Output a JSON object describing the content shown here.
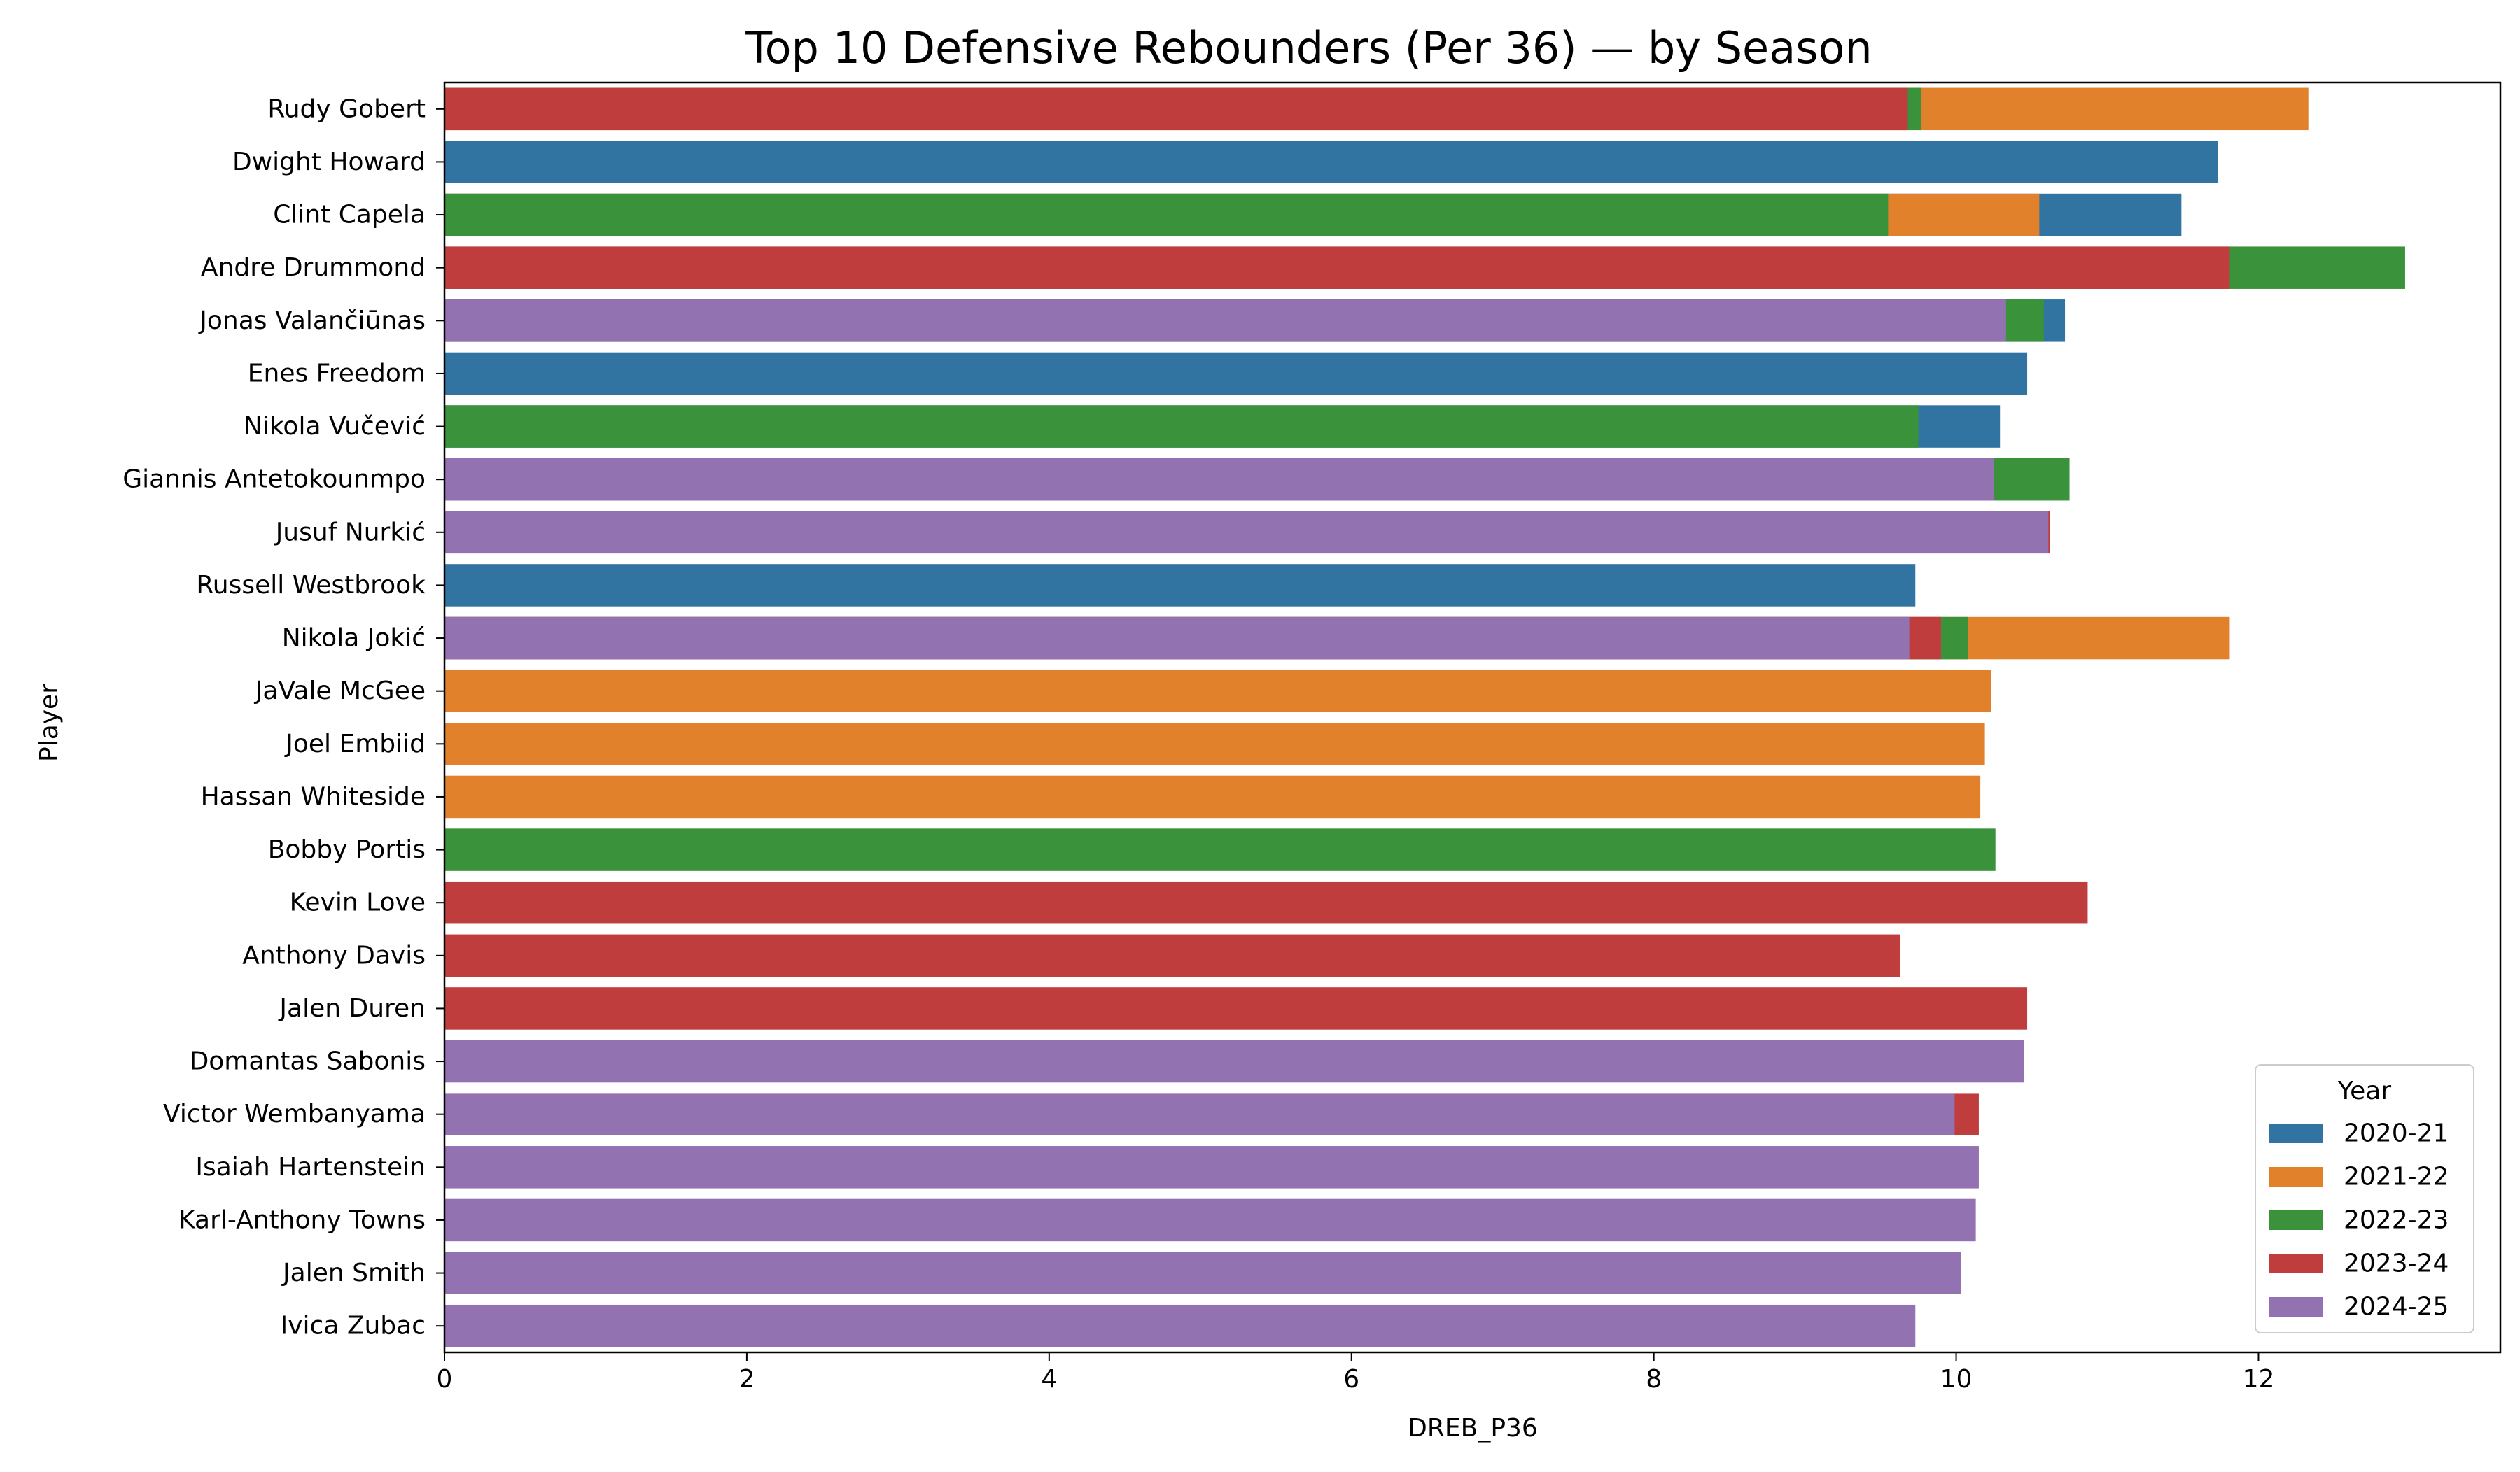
{
  "chart_data": {
    "type": "bar",
    "orientation": "horizontal",
    "title": "Top 10 Defensive Rebounders (Per 36) — by Season",
    "xlabel": "DREB_P36",
    "ylabel": "Player",
    "xlim": [
      0,
      13.6
    ],
    "xticks": [
      0,
      2,
      4,
      6,
      8,
      10,
      12
    ],
    "grid": false,
    "legend": {
      "title": "Year",
      "placement": "lower-right",
      "entries": [
        "2020-21",
        "2021-22",
        "2022-23",
        "2023-24",
        "2024-25"
      ]
    },
    "colors": {
      "2020-21": "#3274a1",
      "2021-22": "#e1812c",
      "2022-23": "#3a923a",
      "2023-24": "#c03d3e",
      "2024-25": "#9372b2"
    },
    "draw_order": [
      "2020-21",
      "2021-22",
      "2022-23",
      "2023-24",
      "2024-25"
    ],
    "categories": [
      "Rudy Gobert",
      "Dwight Howard",
      "Clint Capela",
      "Andre Drummond",
      "Jonas Valančiūnas",
      "Enes Freedom",
      "Nikola Vučević",
      "Giannis Antetokounmpo",
      "Jusuf Nurkić",
      "Russell Westbrook",
      "Nikola Jokić",
      "JaVale McGee",
      "Joel Embiid",
      "Hassan Whiteside",
      "Bobby Portis",
      "Kevin Love",
      "Anthony Davis",
      "Jalen Duren",
      "Domantas Sabonis",
      "Victor Wembanyama",
      "Isaiah Hartenstein",
      "Karl-Anthony Towns",
      "Jalen Smith",
      "Ivica Zubac"
    ],
    "series": [
      {
        "name": "2020-21",
        "values": [
          null,
          11.73,
          11.49,
          null,
          10.72,
          10.47,
          10.29,
          null,
          null,
          9.73,
          null,
          null,
          null,
          null,
          null,
          null,
          null,
          null,
          null,
          null,
          null,
          null,
          null,
          null
        ]
      },
      {
        "name": "2021-22",
        "values": [
          12.33,
          null,
          10.55,
          null,
          null,
          null,
          null,
          null,
          null,
          null,
          11.81,
          10.23,
          10.19,
          10.16,
          null,
          null,
          null,
          null,
          null,
          null,
          null,
          null,
          null,
          null
        ]
      },
      {
        "name": "2022-23",
        "values": [
          9.77,
          null,
          9.55,
          12.97,
          10.58,
          null,
          9.75,
          10.75,
          null,
          null,
          10.08,
          null,
          null,
          null,
          10.26,
          null,
          null,
          null,
          null,
          null,
          null,
          null,
          null,
          null
        ]
      },
      {
        "name": "2023-24",
        "values": [
          9.68,
          null,
          null,
          11.81,
          null,
          null,
          null,
          null,
          10.62,
          null,
          9.9,
          null,
          null,
          null,
          null,
          10.87,
          9.63,
          10.47,
          null,
          10.15,
          null,
          null,
          null,
          null
        ]
      },
      {
        "name": "2024-25",
        "values": [
          null,
          null,
          null,
          null,
          10.33,
          null,
          null,
          10.25,
          10.61,
          null,
          9.69,
          null,
          null,
          null,
          null,
          null,
          null,
          null,
          10.45,
          9.99,
          10.15,
          10.13,
          10.03,
          9.73
        ]
      }
    ]
  }
}
